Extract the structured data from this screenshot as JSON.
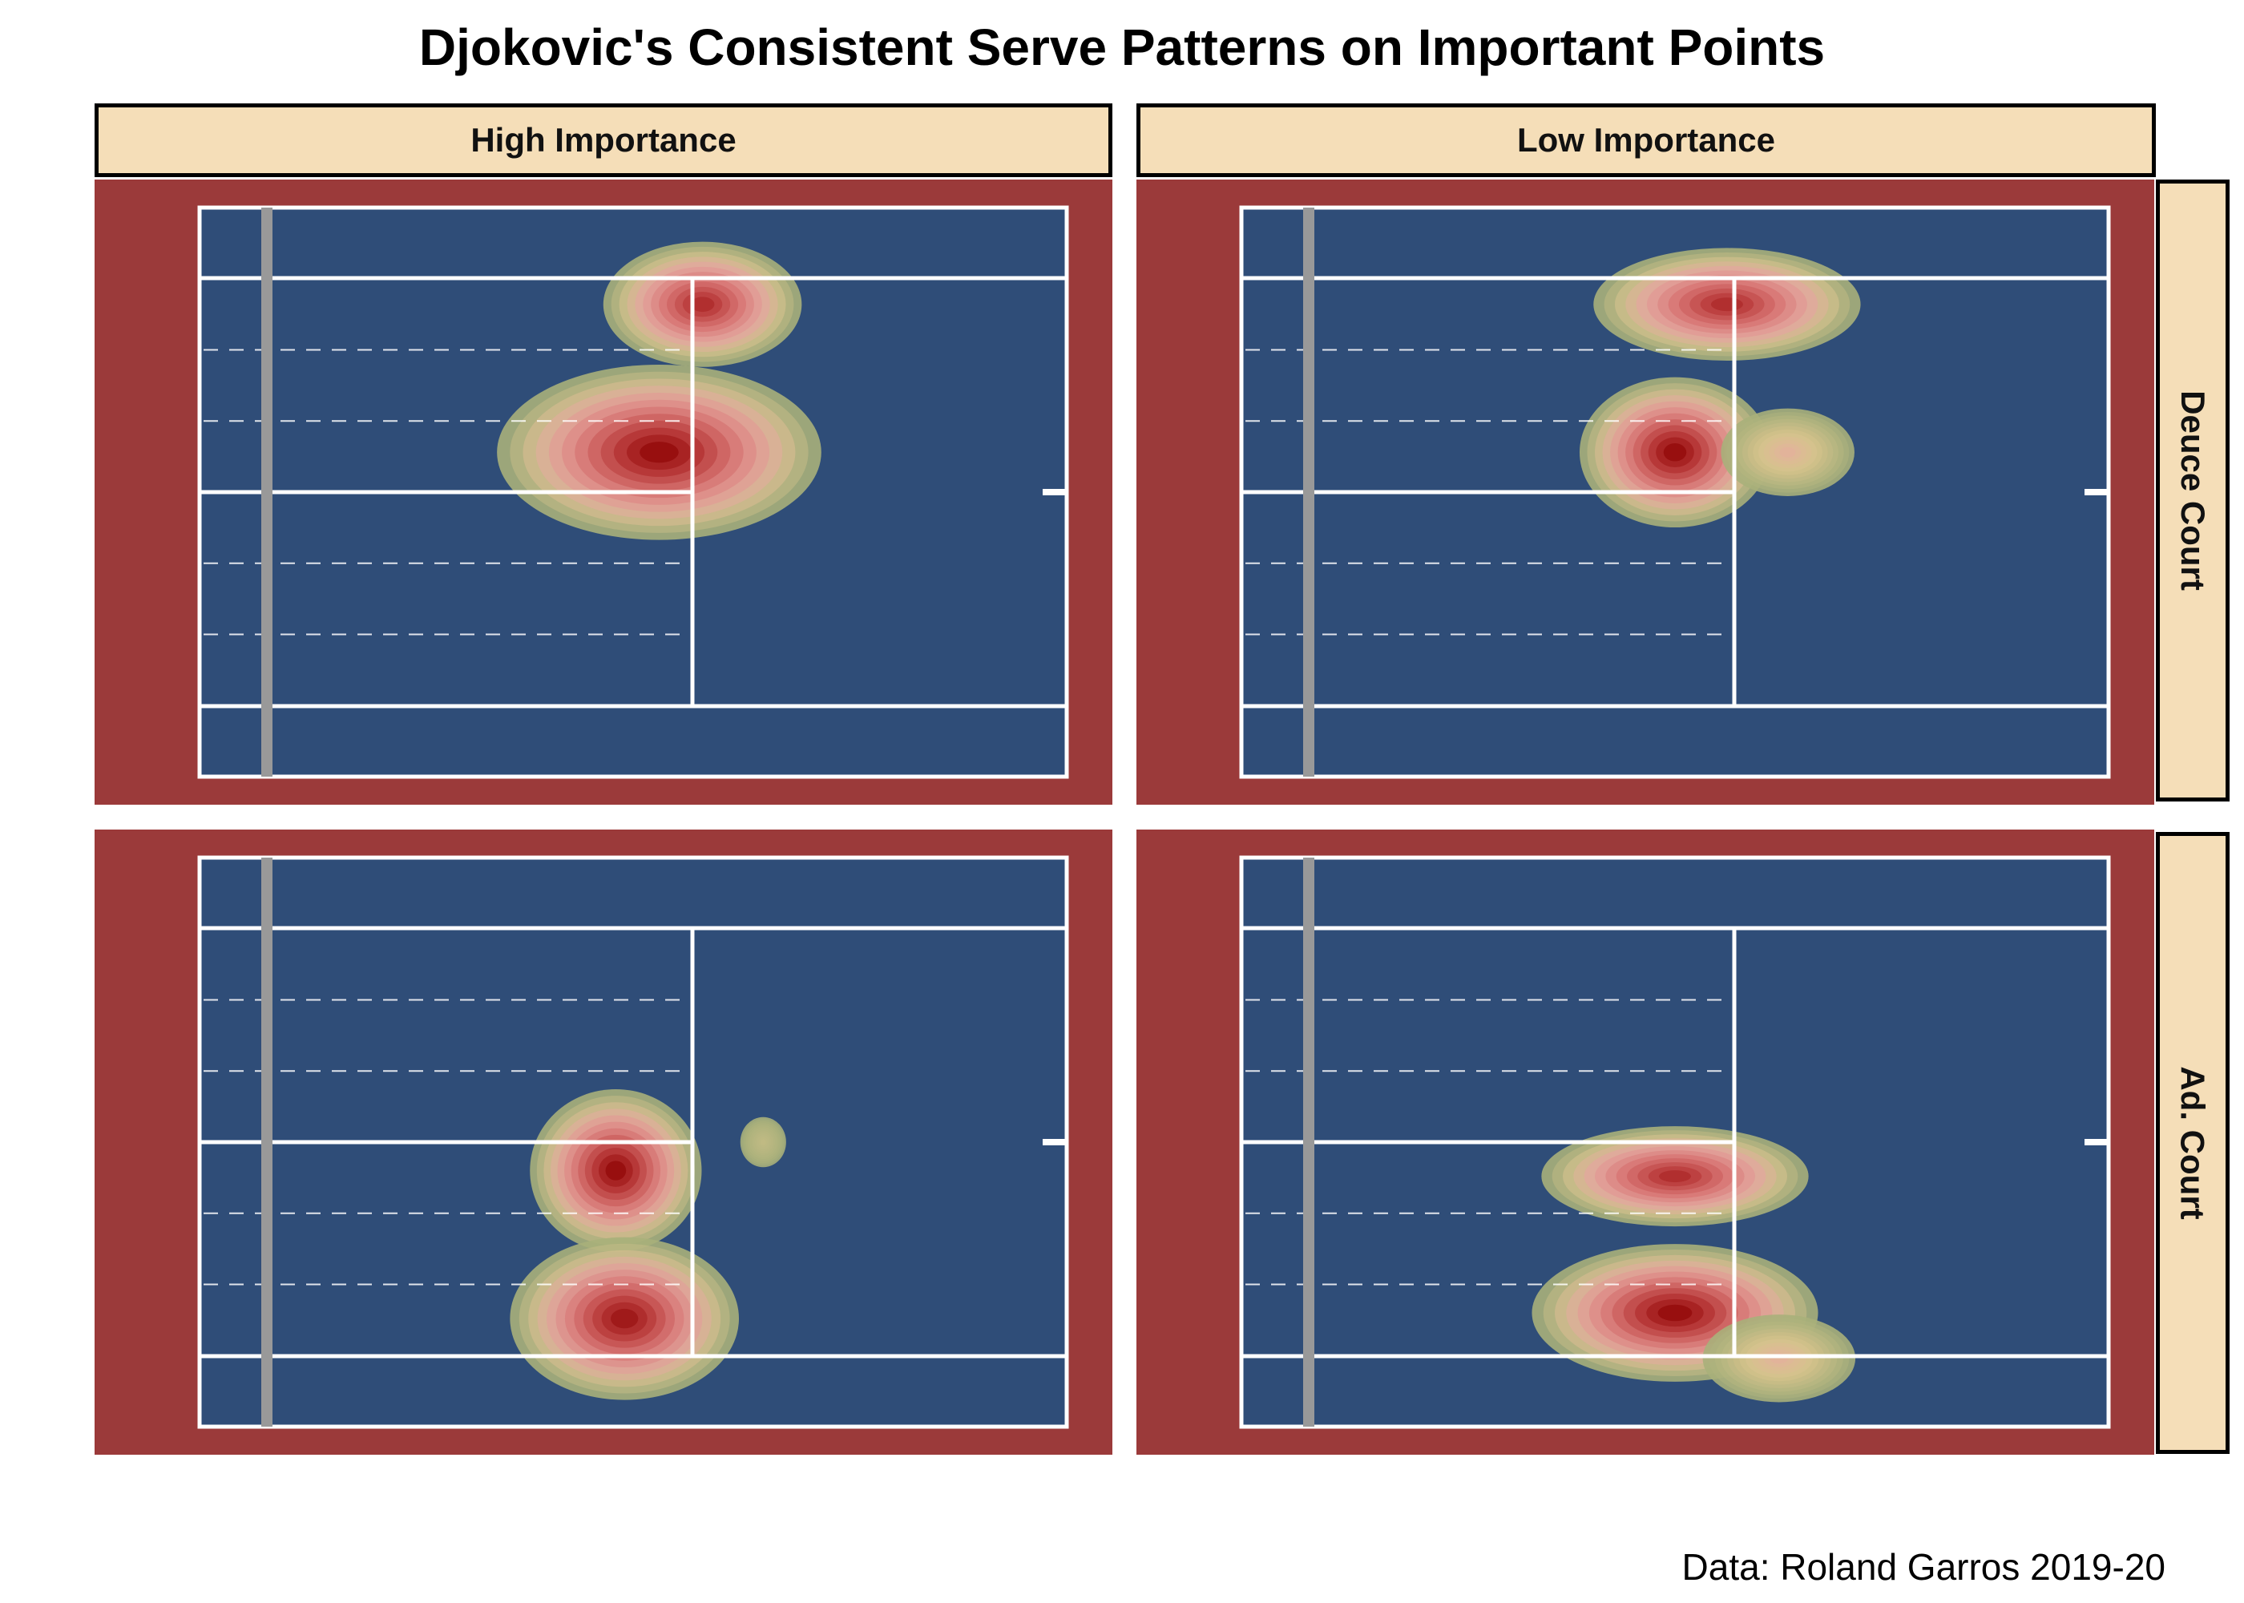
{
  "title": "Djokovic's Consistent Serve Patterns on Important Points",
  "caption": "Data: Roland Garros 2019-20",
  "colors": {
    "surround": "#9b3a3a",
    "court": "#2f4d78",
    "lines": "#ffffff",
    "net": "#999999",
    "density_outer": "#a8b07a",
    "density_mid": "#e8a5a5",
    "density_peak": "#8b0000"
  },
  "facets": {
    "columns": [
      "High Importance",
      "Low Importance"
    ],
    "rows": [
      "Deuce Court",
      "Ad. Court"
    ]
  },
  "chart_data": {
    "type": "heatmap",
    "description_kind": "2D kernel density of serve landing locations",
    "x_axis": "court length",
    "y_axis": "court width",
    "panels": [
      {
        "column": "High Importance",
        "row": "Deuce Court",
        "clusters": [
          {
            "x": 0.58,
            "y": 0.17,
            "sx": 0.052,
            "sy": 0.05,
            "w": 0.85
          },
          {
            "x": 0.53,
            "y": 0.43,
            "sx": 0.085,
            "sy": 0.07,
            "w": 1.0
          }
        ]
      },
      {
        "column": "Low Importance",
        "row": "Deuce Court",
        "clusters": [
          {
            "x": 0.56,
            "y": 0.17,
            "sx": 0.07,
            "sy": 0.045,
            "w": 0.85
          },
          {
            "x": 0.5,
            "y": 0.43,
            "sx": 0.05,
            "sy": 0.06,
            "w": 1.0
          },
          {
            "x": 0.63,
            "y": 0.43,
            "sx": 0.035,
            "sy": 0.035,
            "w": 0.25
          }
        ]
      },
      {
        "column": "High Importance",
        "row": "Ad. Court",
        "clusters": [
          {
            "x": 0.48,
            "y": 0.55,
            "sx": 0.045,
            "sy": 0.065,
            "w": 1.0
          },
          {
            "x": 0.49,
            "y": 0.81,
            "sx": 0.06,
            "sy": 0.065,
            "w": 0.95
          },
          {
            "x": 0.65,
            "y": 0.5,
            "sx": 0.012,
            "sy": 0.02,
            "w": 0.08
          }
        ]
      },
      {
        "column": "Low Importance",
        "row": "Ad. Court",
        "clusters": [
          {
            "x": 0.5,
            "y": 0.56,
            "sx": 0.07,
            "sy": 0.04,
            "w": 0.85
          },
          {
            "x": 0.5,
            "y": 0.8,
            "sx": 0.075,
            "sy": 0.055,
            "w": 1.0
          },
          {
            "x": 0.62,
            "y": 0.88,
            "sx": 0.04,
            "sy": 0.035,
            "w": 0.25
          }
        ]
      }
    ]
  }
}
